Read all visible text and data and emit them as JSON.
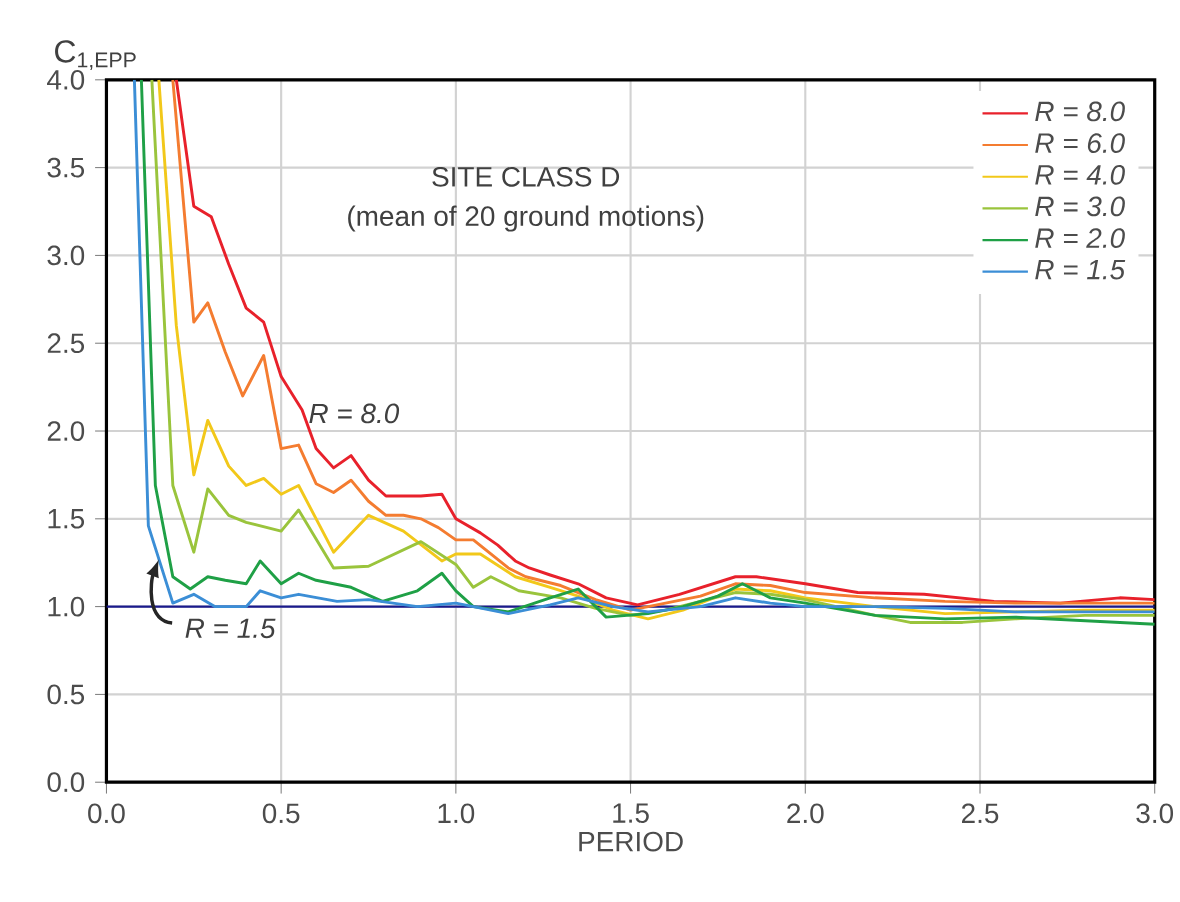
{
  "chart_data": {
    "type": "line",
    "xlabel": "PERIOD",
    "ylabel": "C$_{1,EPP}$",
    "xlim": [
      0,
      3
    ],
    "ylim": [
      0,
      4
    ],
    "xticks": [
      {
        "value": 0,
        "label": "0.0"
      },
      0.5,
      {
        "value": 1,
        "label": "1.0"
      },
      1.5,
      {
        "value": 2,
        "label": "2.0"
      },
      2.5,
      {
        "value": 3,
        "label": "3.0"
      }
    ],
    "yticks": [
      {
        "value": 0,
        "label": "0.0"
      },
      0.5,
      {
        "value": 1,
        "label": "1.0"
      },
      1.5,
      {
        "value": 2,
        "label": "2.0"
      },
      2.5,
      {
        "value": 3,
        "label": "3.0"
      },
      3.5,
      {
        "value": 4,
        "label": "4.0"
      }
    ],
    "grid": true,
    "legend": "top right",
    "line_style": "solid",
    "marker": "none",
    "ref_lines": [
      {
        "axis": "y",
        "value": 1.0,
        "color": "#1a1a8c"
      }
    ],
    "annotations": [
      "SITE CLASS D",
      "(mean of 20 ground motions)",
      {
        "text": "R = 8.0",
        "x": 0.55,
        "y": 2.1
      },
      {
        "text": "R = 1.5",
        "x": 0.15,
        "y": 1.27
      }
    ],
    "series": [
      {
        "name": "R = 8.0",
        "color": "#e8212b",
        "x": [
          0.2,
          0.25,
          0.3,
          0.35,
          0.4,
          0.45,
          0.5,
          0.56,
          0.6,
          0.65,
          0.7,
          0.75,
          0.8,
          0.9,
          0.96,
          1.0,
          1.07,
          1.12,
          1.17,
          1.21,
          1.27,
          1.35,
          1.43,
          1.52,
          1.64,
          1.8,
          1.86,
          2.0,
          2.15,
          2.34,
          2.54,
          2.73,
          2.9,
          3.0
        ],
        "values": [
          4.0,
          3.28,
          3.22,
          2.95,
          2.7,
          2.62,
          2.31,
          2.12,
          1.9,
          1.79,
          1.86,
          1.72,
          1.63,
          1.63,
          1.64,
          1.5,
          1.42,
          1.35,
          1.26,
          1.22,
          1.18,
          1.13,
          1.05,
          1.01,
          1.07,
          1.17,
          1.17,
          1.13,
          1.08,
          1.07,
          1.03,
          1.02,
          1.05,
          1.04
        ]
      },
      {
        "name": "R = 6.0",
        "color": "#f47c30",
        "x": [
          0.19,
          0.25,
          0.29,
          0.34,
          0.39,
          0.45,
          0.5,
          0.55,
          0.6,
          0.65,
          0.7,
          0.75,
          0.8,
          0.85,
          0.9,
          0.95,
          1.0,
          1.05,
          1.1,
          1.15,
          1.2,
          1.3,
          1.35,
          1.4,
          1.5,
          1.6,
          1.7,
          1.8,
          1.9,
          2.0,
          2.2,
          2.4,
          2.6,
          2.8,
          3.0
        ],
        "values": [
          4.0,
          2.62,
          2.73,
          2.45,
          2.2,
          2.43,
          1.9,
          1.92,
          1.7,
          1.65,
          1.72,
          1.6,
          1.52,
          1.52,
          1.5,
          1.45,
          1.38,
          1.38,
          1.3,
          1.22,
          1.17,
          1.12,
          1.08,
          1.04,
          0.98,
          1.02,
          1.06,
          1.13,
          1.12,
          1.08,
          1.05,
          1.03,
          1.02,
          1.02,
          1.02
        ]
      },
      {
        "name": "R = 4.0",
        "color": "#f2c81a",
        "x": [
          0.15,
          0.2,
          0.25,
          0.29,
          0.35,
          0.4,
          0.45,
          0.5,
          0.55,
          0.65,
          0.75,
          0.85,
          0.96,
          1.0,
          1.07,
          1.17,
          1.27,
          1.35,
          1.45,
          1.55,
          1.65,
          1.8,
          1.9,
          2.0,
          2.2,
          2.4,
          2.6,
          2.8,
          3.0
        ],
        "values": [
          4.0,
          2.6,
          1.75,
          2.06,
          1.8,
          1.69,
          1.73,
          1.64,
          1.69,
          1.31,
          1.52,
          1.43,
          1.26,
          1.3,
          1.3,
          1.17,
          1.11,
          1.06,
          0.98,
          0.93,
          0.98,
          1.1,
          1.09,
          1.05,
          1.0,
          0.96,
          0.97,
          0.98,
          0.98
        ]
      },
      {
        "name": "R = 3.0",
        "color": "#9ac43c",
        "x": [
          0.13,
          0.19,
          0.25,
          0.29,
          0.35,
          0.4,
          0.5,
          0.55,
          0.65,
          0.75,
          0.9,
          1.0,
          1.05,
          1.1,
          1.18,
          1.3,
          1.4,
          1.5,
          1.6,
          1.7,
          1.8,
          1.9,
          2.0,
          2.2,
          2.3,
          2.45,
          2.6,
          2.8,
          3.0
        ],
        "values": [
          4.0,
          1.69,
          1.31,
          1.67,
          1.52,
          1.48,
          1.43,
          1.55,
          1.22,
          1.23,
          1.37,
          1.24,
          1.11,
          1.17,
          1.09,
          1.05,
          0.99,
          0.95,
          0.98,
          1.03,
          1.08,
          1.07,
          1.04,
          0.95,
          0.91,
          0.91,
          0.93,
          0.95,
          0.95
        ]
      },
      {
        "name": "R = 2.0",
        "color": "#1fa046",
        "x": [
          0.1,
          0.14,
          0.19,
          0.24,
          0.29,
          0.34,
          0.4,
          0.44,
          0.5,
          0.55,
          0.6,
          0.7,
          0.79,
          0.89,
          0.96,
          1.0,
          1.05,
          1.15,
          1.27,
          1.35,
          1.43,
          1.55,
          1.65,
          1.75,
          1.82,
          1.9,
          2.0,
          2.2,
          2.4,
          2.6,
          2.8,
          3.0
        ],
        "values": [
          4.0,
          1.69,
          1.17,
          1.1,
          1.17,
          1.15,
          1.13,
          1.26,
          1.13,
          1.19,
          1.15,
          1.11,
          1.03,
          1.09,
          1.19,
          1.09,
          1.0,
          0.97,
          1.05,
          1.1,
          0.94,
          0.96,
          1.0,
          1.06,
          1.13,
          1.05,
          1.02,
          0.95,
          0.93,
          0.94,
          0.92,
          0.9
        ]
      },
      {
        "name": "R = 1.5",
        "color": "#3b8ed6",
        "x": [
          0.08,
          0.12,
          0.19,
          0.25,
          0.31,
          0.4,
          0.44,
          0.5,
          0.55,
          0.66,
          0.75,
          0.89,
          1.0,
          1.15,
          1.27,
          1.35,
          1.45,
          1.55,
          1.7,
          1.8,
          1.9,
          2.0,
          2.2,
          2.4,
          2.6,
          2.8,
          3.0
        ],
        "values": [
          4.0,
          1.46,
          1.02,
          1.07,
          1.0,
          1.0,
          1.09,
          1.05,
          1.07,
          1.03,
          1.04,
          1.0,
          1.02,
          0.96,
          1.01,
          1.05,
          1.0,
          0.97,
          1.0,
          1.05,
          1.02,
          1.0,
          1.0,
          0.99,
          0.97,
          0.97,
          0.97
        ]
      }
    ]
  }
}
